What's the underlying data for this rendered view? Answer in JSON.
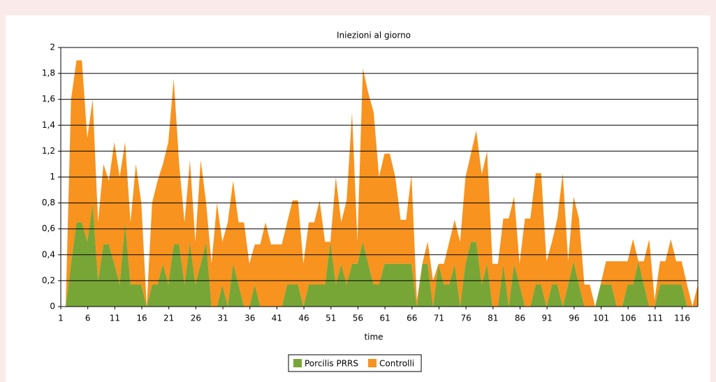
{
  "chart_data": {
    "type": "stacked-area",
    "title": "Iniezioni al giorno",
    "x_label": "time",
    "categories": [
      "1",
      null,
      null,
      null,
      null,
      "6",
      null,
      null,
      null,
      null,
      "11",
      null,
      null,
      null,
      null,
      "16",
      null,
      null,
      null,
      null,
      "21",
      null,
      null,
      null,
      null,
      "26",
      null,
      null,
      null,
      null,
      "31",
      null,
      null,
      null,
      null,
      "36",
      null,
      null,
      null,
      null,
      "41",
      null,
      null,
      null,
      null,
      "46",
      null,
      null,
      null,
      null,
      "51",
      null,
      null,
      null,
      null,
      "56",
      null,
      null,
      null,
      null,
      "61",
      null,
      null,
      null,
      null,
      "66",
      null,
      null,
      null,
      null,
      "71",
      null,
      null,
      null,
      null,
      "76",
      null,
      null,
      null,
      null,
      "81",
      null,
      null,
      null,
      null,
      "86",
      null,
      null,
      null,
      null,
      "91",
      null,
      null,
      null,
      null,
      "96",
      null,
      null,
      null,
      null,
      "101",
      null,
      null,
      null,
      null,
      "106",
      null,
      null,
      null,
      null,
      "111",
      null,
      null,
      null,
      null,
      "116",
      null,
      null
    ],
    "series": [
      {
        "name": "Porcilis PRRS",
        "color": "#77a637",
        "values": [
          0,
          0.33,
          0.65,
          0.65,
          0.5,
          0.8,
          0.2,
          0.48,
          0.48,
          0.33,
          0.17,
          0.65,
          0.17,
          0.17,
          0.17,
          0,
          0.17,
          0.17,
          0.33,
          0.17,
          0.48,
          0.48,
          0.17,
          0.5,
          0.17,
          0.33,
          0.5,
          0,
          0,
          0.17,
          0,
          0.33,
          0.17,
          0,
          0,
          0.17,
          0,
          0,
          0,
          0,
          0,
          0.17,
          0.17,
          0.17,
          0,
          0.17,
          0.17,
          0.17,
          0.17,
          0.5,
          0.17,
          0.33,
          0.17,
          0.33,
          0.33,
          0.5,
          0.33,
          0.17,
          0.17,
          0.33,
          0.33,
          0.33,
          0.33,
          0.33,
          0.33,
          0,
          0.33,
          0.33,
          0,
          0.33,
          0.17,
          0.17,
          0.33,
          0,
          0.33,
          0.5,
          0.5,
          0.17,
          0.33,
          0,
          0,
          0.33,
          0,
          0.33,
          0.17,
          0,
          0,
          0.17,
          0.17,
          0,
          0.17,
          0.17,
          0,
          0.17,
          0.35,
          0.17,
          0,
          0,
          0,
          0.17,
          0.17,
          0.17,
          0,
          0,
          0.17,
          0.17,
          0.35,
          0.17,
          0,
          0,
          0.17,
          0.17,
          0.17,
          0.17,
          0.17,
          0,
          0,
          0
        ]
      },
      {
        "name": "Controlli",
        "color": "#f7931e",
        "values": [
          0,
          1.27,
          1.25,
          1.25,
          0.8,
          0.8,
          0.45,
          0.62,
          0.49,
          0.94,
          0.83,
          0.62,
          0.48,
          0.93,
          0.63,
          0,
          0.63,
          0.8,
          0.77,
          1.1,
          1.28,
          0.62,
          0.48,
          0.63,
          0.33,
          0.8,
          0.3,
          0.33,
          0.8,
          0.33,
          0.65,
          0.64,
          0.48,
          0.65,
          0.33,
          0.31,
          0.48,
          0.65,
          0.48,
          0.48,
          0.48,
          0.48,
          0.65,
          0.65,
          0.33,
          0.48,
          0.48,
          0.65,
          0.33,
          0,
          0.83,
          0.32,
          0.65,
          1.17,
          0.17,
          1.34,
          1.32,
          1.33,
          0.83,
          0.85,
          0.85,
          0.67,
          0.34,
          0.34,
          0.69,
          0.05,
          0,
          0.17,
          0.2,
          0,
          0.16,
          0.33,
          0.34,
          0.5,
          0.67,
          0.68,
          0.86,
          0.85,
          0.87,
          0.33,
          0.33,
          0.35,
          0.68,
          0.52,
          0.16,
          0.68,
          0.68,
          0.86,
          0.86,
          0.35,
          0.33,
          0.51,
          1.03,
          0.18,
          0.5,
          0.51,
          0.17,
          0.17,
          0,
          0,
          0.18,
          0.18,
          0.35,
          0.35,
          0.18,
          0.35,
          0,
          0.18,
          0.52,
          0.05,
          0.18,
          0.18,
          0.35,
          0.18,
          0.18,
          0.17,
          0,
          0.17
        ]
      }
    ],
    "ylim": [
      0,
      2
    ],
    "yticks": [
      0,
      {
        "value": 0.2,
        "label": "0,2"
      },
      {
        "value": 0.4,
        "label": "0,4"
      },
      {
        "value": 0.6,
        "label": "0,6"
      },
      {
        "value": 0.8,
        "label": "0,8"
      },
      1,
      {
        "value": 1.2,
        "label": "1,2"
      },
      {
        "value": 1.4,
        "label": "1,4"
      },
      {
        "value": 1.6,
        "label": "1,6"
      },
      {
        "value": 1.8,
        "label": "1,8"
      },
      2
    ],
    "grid": true,
    "legend": "bottom"
  }
}
